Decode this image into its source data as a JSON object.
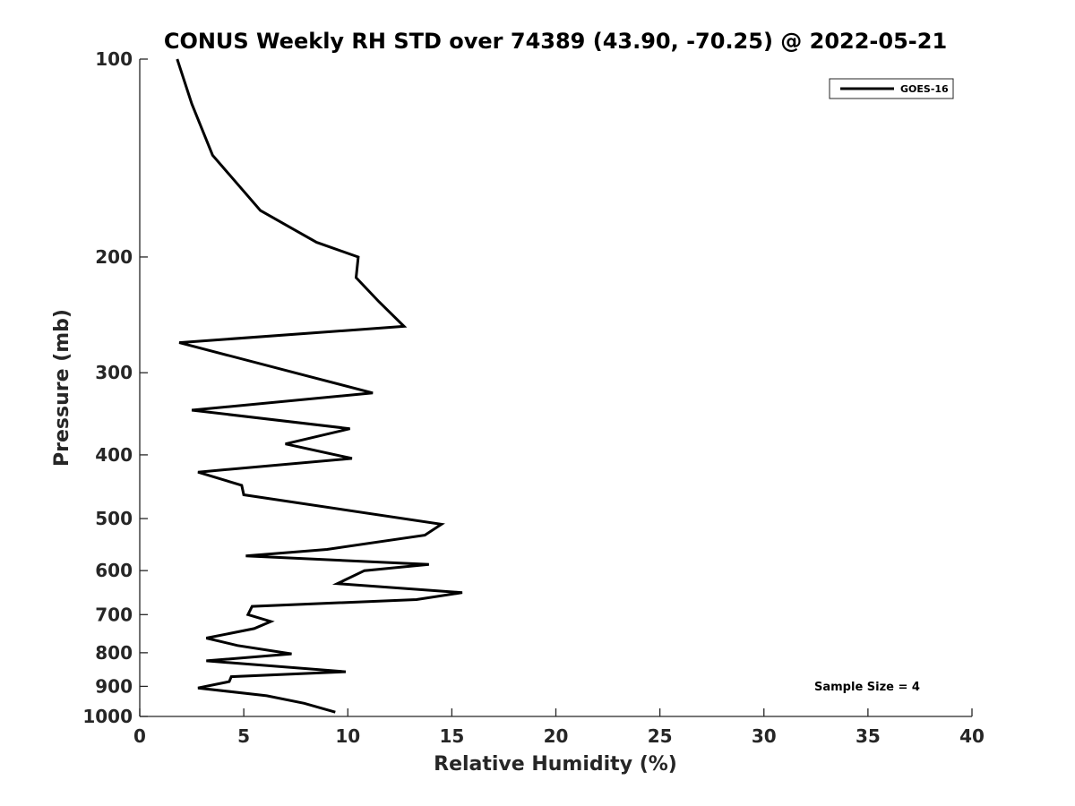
{
  "chart_data": {
    "type": "line",
    "title": "CONUS Weekly RH STD over 74389 (43.90, -70.25) @ 2022-05-21",
    "xlabel": "Relative Humidity (%)",
    "ylabel": "Pressure (mb)",
    "xlim": [
      0,
      40
    ],
    "ylim": [
      100,
      1000
    ],
    "yscale": "log",
    "y_reversed": true,
    "grid": false,
    "legend_position": "top-right",
    "xticks": [
      0,
      5,
      10,
      15,
      20,
      25,
      30,
      35,
      40
    ],
    "yticks": [
      100,
      200,
      300,
      400,
      500,
      600,
      700,
      800,
      900,
      1000
    ],
    "annotation": "Sample Size = 4",
    "series": [
      {
        "name": "GOES-16",
        "color": "#000000",
        "x": [
          1.8,
          2.5,
          3.5,
          5.8,
          8.5,
          10.5,
          10.4,
          11.5,
          12.7,
          1.9,
          7.8,
          11.2,
          2.5,
          10.1,
          7.0,
          10.2,
          2.8,
          4.9,
          5.0,
          14.5,
          13.7,
          9.0,
          5.1,
          13.9,
          10.8,
          9.5,
          15.5,
          13.3,
          5.4,
          5.2,
          6.3,
          5.5,
          3.2,
          4.7,
          7.3,
          3.2,
          9.9,
          4.4,
          4.3,
          2.8,
          6.1,
          7.9,
          9.4
        ],
        "y": [
          100,
          117,
          140,
          170,
          190,
          200,
          215,
          234,
          255,
          270,
          302,
          322,
          342,
          365,
          385,
          405,
          425,
          445,
          460,
          510,
          530,
          557,
          570,
          587,
          600,
          628,
          648,
          664,
          680,
          700,
          717,
          735,
          760,
          780,
          803,
          823,
          855,
          870,
          885,
          905,
          930,
          955,
          985
        ]
      }
    ]
  }
}
